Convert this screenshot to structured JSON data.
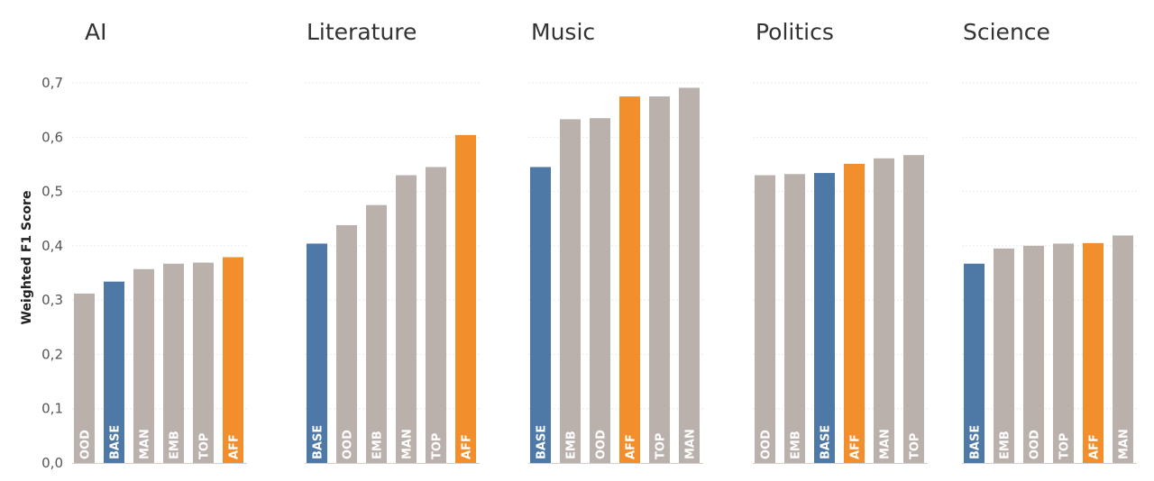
{
  "colors": {
    "base": "#4e79a7",
    "aff": "#f28e2b",
    "other": "#bab0ac"
  },
  "chart_data": {
    "type": "bar",
    "ylabel": "Weighted F1 Score",
    "ylim": [
      0,
      0.7
    ],
    "yticks": [
      "0,0",
      "0,1",
      "0,2",
      "0,3",
      "0,4",
      "0,5",
      "0,6",
      "0,7"
    ],
    "grid": true,
    "panels": [
      {
        "title": "AI",
        "categories": [
          "OOD",
          "BASE",
          "MAN",
          "EMB",
          "TOP",
          "AFF"
        ],
        "values": [
          0.312,
          0.334,
          0.357,
          0.367,
          0.369,
          0.379
        ]
      },
      {
        "title": "Literature",
        "categories": [
          "BASE",
          "OOD",
          "EMB",
          "MAN",
          "TOP",
          "AFF"
        ],
        "values": [
          0.404,
          0.438,
          0.475,
          0.53,
          0.545,
          0.604
        ]
      },
      {
        "title": "Music",
        "categories": [
          "BASE",
          "EMB",
          "OOD",
          "AFF",
          "TOP",
          "MAN"
        ],
        "values": [
          0.545,
          0.633,
          0.635,
          0.675,
          0.675,
          0.691
        ]
      },
      {
        "title": "Politics",
        "categories": [
          "OOD",
          "EMB",
          "BASE",
          "AFF",
          "MAN",
          "TOP"
        ],
        "values": [
          0.53,
          0.532,
          0.534,
          0.551,
          0.561,
          0.567
        ]
      },
      {
        "title": "Science",
        "categories": [
          "BASE",
          "EMB",
          "OOD",
          "TOP",
          "AFF",
          "MAN"
        ],
        "values": [
          0.367,
          0.395,
          0.4,
          0.404,
          0.405,
          0.419
        ]
      }
    ]
  }
}
